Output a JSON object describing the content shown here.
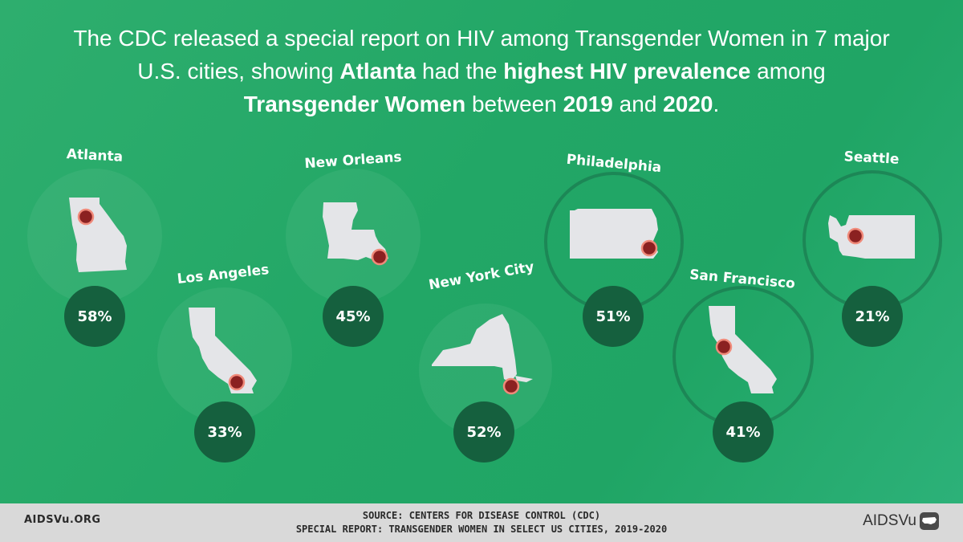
{
  "headline": {
    "line1": "The CDC released a special report on HIV among Transgender Women in 7 major",
    "line2_pre": "U.S. cities, showing ",
    "line2_bold1": "Atlanta",
    "line2_mid": " had the ",
    "line2_bold2": "highest HIV prevalence",
    "line2_post": " among",
    "line3_bold1": "Transgender Women",
    "line3_mid": " between ",
    "line3_bold2": "2019",
    "line3_and": " and ",
    "line3_bold3": "2020",
    "line3_end": "."
  },
  "cities": [
    {
      "name": "Atlanta",
      "value": "58%"
    },
    {
      "name": "Los Angeles",
      "value": "33%"
    },
    {
      "name": "New Orleans",
      "value": "45%"
    },
    {
      "name": "New York City",
      "value": "52%"
    },
    {
      "name": "Philadelphia",
      "value": "51%"
    },
    {
      "name": "San Francisco",
      "value": "41%"
    },
    {
      "name": "Seattle",
      "value": "21%"
    }
  ],
  "footer": {
    "url": "AIDSVu.ORG",
    "source_line1": "SOURCE: CENTERS FOR DISEASE CONTROL (CDC)",
    "source_line2": "SPECIAL REPORT: TRANSGENDER WOMEN IN SELECT US CITIES, 2019-2020",
    "logo": "AIDSVu",
    "logo_icon": "us-map-icon"
  },
  "colors": {
    "background": "#22a766",
    "badge": "#15603e",
    "state_fill": "#e4e5e8",
    "marker": "#8b2121",
    "marker_ring": "#f08a7a",
    "footer": "#d9d9d9"
  }
}
